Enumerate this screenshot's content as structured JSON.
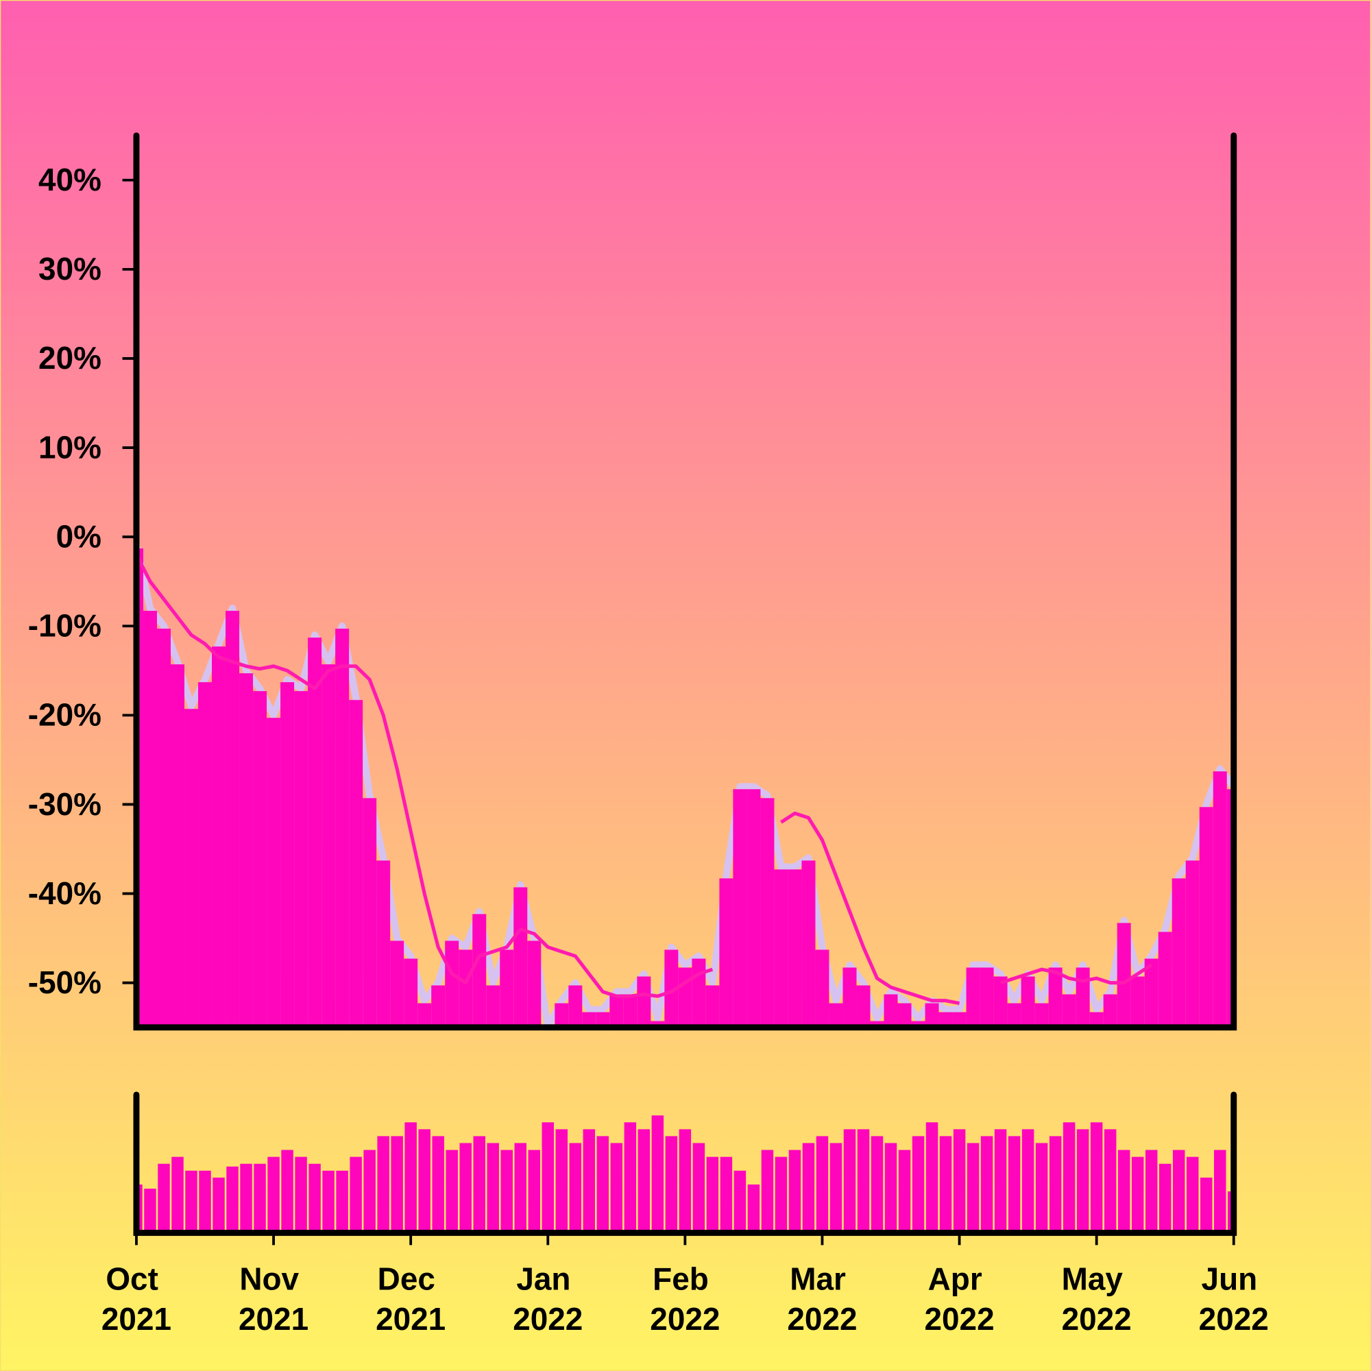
{
  "chart_data": [
    {
      "type": "area",
      "ylim": [
        -55,
        45
      ],
      "yticks": [
        {
          "value": -50,
          "label": "-50%"
        },
        {
          "value": -40,
          "label": "-40%"
        },
        {
          "value": -30,
          "label": "-30%"
        },
        {
          "value": -20,
          "label": "-20%"
        },
        {
          "value": -10,
          "label": "-10%"
        },
        {
          "value": 0,
          "label": "0%"
        },
        {
          "value": 10,
          "label": "10%"
        },
        {
          "value": 20,
          "label": "20%"
        },
        {
          "value": 30,
          "label": "30%"
        },
        {
          "value": 40,
          "label": "40%"
        }
      ],
      "series": [
        {
          "type": "area",
          "color": "#ff06bd",
          "edge_color": "#d6c2f0",
          "values": [
            -1,
            -8,
            -10,
            -14,
            -19,
            -16,
            -12,
            -8,
            -15,
            -17,
            -20,
            -16,
            -17,
            -11,
            -14,
            -10,
            -18,
            -29,
            -36,
            -45,
            -47,
            -52,
            -50,
            -45,
            -46,
            -42,
            -50,
            -46,
            -39,
            -45,
            -55,
            -52,
            -50,
            -53,
            -53,
            -51,
            -51,
            -49,
            -54,
            -46,
            -48,
            -47,
            -50,
            -38,
            -28,
            -28,
            -29,
            -37,
            -37,
            -36,
            -46,
            -52,
            -48,
            -50,
            -54,
            -51,
            -52,
            -54,
            -52,
            -53,
            -53,
            -48,
            -48,
            -49,
            -52,
            -49,
            -52,
            -48,
            -51,
            -48,
            -53,
            -51,
            -43,
            -49,
            -47,
            -44,
            -38,
            -36,
            -30,
            -26,
            -28
          ]
        },
        {
          "type": "line",
          "color": "#ff1ab0",
          "values": [
            -2,
            -5,
            -7,
            -9,
            -11,
            -12,
            -13.5,
            -14,
            -14.5,
            -14.8,
            -14.5,
            -15,
            -16,
            -17,
            -15,
            -14.5,
            -14.5,
            -16,
            -20,
            -26,
            -33,
            -40,
            -46,
            -49,
            -50,
            -47,
            -46.5,
            -46,
            -44,
            -44.5,
            -46,
            -46.5,
            -47,
            -49,
            -51,
            -51.5,
            -51.5,
            -51.3,
            -51.5,
            -51,
            -50,
            -49,
            -48.5,
            null,
            null,
            null,
            null,
            -32,
            -31,
            -31.5,
            -34,
            -38,
            -42,
            -46,
            -49.5,
            -50.5,
            -51,
            -51.5,
            -52,
            -52,
            -52.3,
            null,
            null,
            -50,
            -49.5,
            -49,
            -48.5,
            -48.8,
            -49.5,
            -49.8,
            -49.5,
            -50,
            -50,
            -49,
            -48,
            null,
            null,
            null,
            null,
            null,
            null
          ]
        }
      ]
    },
    {
      "type": "bar",
      "color": "#ff06bd",
      "ylim": [
        0,
        100
      ],
      "categories": [
        "Oct 2021",
        null,
        null,
        null,
        null,
        null,
        null,
        null,
        null,
        null,
        "Nov 2021",
        null,
        null,
        null,
        null,
        null,
        null,
        null,
        null,
        null,
        "Dec 2021",
        null,
        null,
        null,
        null,
        null,
        null,
        null,
        null,
        null,
        "Jan 2022",
        null,
        null,
        null,
        null,
        null,
        null,
        null,
        null,
        null,
        "Feb 2022",
        null,
        null,
        null,
        null,
        null,
        null,
        null,
        null,
        null,
        "Mar 2022",
        null,
        null,
        null,
        null,
        null,
        null,
        null,
        null,
        null,
        "Apr 2022",
        null,
        null,
        null,
        null,
        null,
        null,
        null,
        null,
        null,
        "May 2022",
        null,
        null,
        null,
        null,
        null,
        null,
        null,
        null,
        null,
        "Jun 2022"
      ],
      "values": [
        35,
        32,
        50,
        55,
        45,
        45,
        40,
        48,
        50,
        50,
        55,
        60,
        55,
        50,
        45,
        45,
        55,
        60,
        70,
        70,
        80,
        75,
        70,
        60,
        65,
        70,
        65,
        60,
        65,
        60,
        80,
        75,
        65,
        75,
        70,
        65,
        80,
        75,
        85,
        70,
        75,
        65,
        55,
        55,
        45,
        35,
        60,
        55,
        60,
        65,
        70,
        65,
        75,
        75,
        70,
        65,
        60,
        70,
        80,
        70,
        75,
        65,
        70,
        75,
        70,
        75,
        65,
        70,
        80,
        75,
        80,
        75,
        60,
        55,
        60,
        50,
        60,
        55,
        40,
        60,
        30
      ]
    }
  ]
}
